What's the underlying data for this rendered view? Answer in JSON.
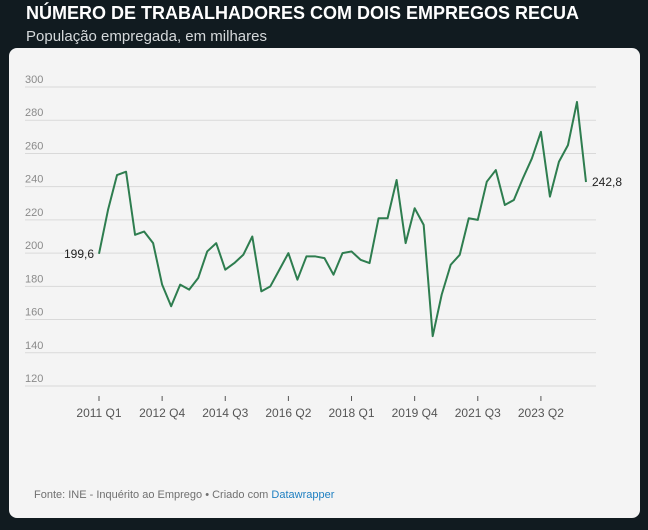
{
  "header": {
    "title": "NÚMERO DE TRABALHADORES COM DOIS EMPREGOS RECUA",
    "subtitle": "População empregada, em milhares"
  },
  "footer": {
    "source": "Fonte: INE - Inquérito ao Emprego • Criado com ",
    "link": "Datawrapper"
  },
  "colors": {
    "background": "#111b20",
    "card": "#f4f4f4",
    "line": "#2e7d4f",
    "grid": "#d9d9d9",
    "tick_text": "#8a8a8a",
    "link": "#1d7fc1"
  },
  "chart_data": {
    "type": "line",
    "title": "NÚMERO DE TRABALHADORES COM DOIS EMPREGOS RECUA",
    "subtitle": "População empregada, em milhares",
    "xlabel": "",
    "ylabel": "",
    "ylim": [
      120,
      300
    ],
    "yticks": [
      120,
      140,
      160,
      180,
      200,
      220,
      240,
      260,
      280,
      300
    ],
    "grid": true,
    "legend": "none",
    "xtick_labels": [
      "2011 Q1",
      "2012 Q4",
      "2014 Q3",
      "2016 Q2",
      "2018 Q1",
      "2019 Q4",
      "2021 Q3",
      "2023 Q2"
    ],
    "x": [
      "2011 Q1",
      "2011 Q2",
      "2011 Q3",
      "2011 Q4",
      "2012 Q1",
      "2012 Q2",
      "2012 Q3",
      "2012 Q4",
      "2013 Q1",
      "2013 Q2",
      "2013 Q3",
      "2013 Q4",
      "2014 Q1",
      "2014 Q2",
      "2014 Q3",
      "2014 Q4",
      "2015 Q1",
      "2015 Q2",
      "2015 Q3",
      "2015 Q4",
      "2016 Q1",
      "2016 Q2",
      "2016 Q3",
      "2016 Q4",
      "2017 Q1",
      "2017 Q2",
      "2017 Q3",
      "2017 Q4",
      "2018 Q1",
      "2018 Q2",
      "2018 Q3",
      "2018 Q4",
      "2019 Q1",
      "2019 Q2",
      "2019 Q3",
      "2019 Q4",
      "2020 Q1",
      "2020 Q2",
      "2020 Q3",
      "2020 Q4",
      "2021 Q1",
      "2021 Q2",
      "2021 Q3",
      "2021 Q4",
      "2022 Q1",
      "2022 Q2",
      "2022 Q3",
      "2022 Q4",
      "2023 Q1",
      "2023 Q2",
      "2023 Q3",
      "2023 Q4",
      "2024 Q1",
      "2024 Q2",
      "2024 Q3"
    ],
    "values": [
      199.6,
      226,
      247,
      249,
      211,
      213,
      206,
      181,
      168,
      181,
      178,
      185,
      201,
      206,
      190,
      194,
      199,
      210,
      177,
      180,
      190,
      200,
      184,
      198,
      198,
      197,
      187,
      200,
      201,
      196,
      194,
      221,
      221,
      244,
      206,
      227,
      217,
      150,
      175,
      193,
      199,
      221,
      220,
      243,
      250,
      229,
      232,
      245,
      257,
      273,
      234,
      255,
      265,
      291,
      242.8
    ],
    "annotations": [
      {
        "label": "199,6",
        "point": "2011 Q1"
      },
      {
        "label": "242,8",
        "point": "2024 Q3"
      }
    ]
  }
}
